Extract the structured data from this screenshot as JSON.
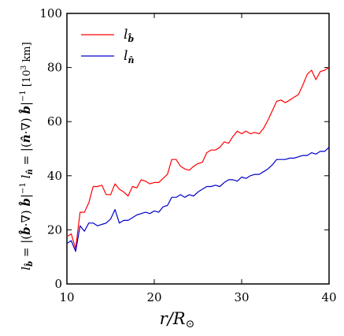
{
  "chart_data": {
    "type": "line",
    "xlabel": "r/R⊙",
    "ylabel_left": "l_b = |(b·∇) b|⁻¹",
    "ylabel_right": "l_n = |(n·∇) b|⁻¹",
    "ylabel_units": "[10³ km]",
    "xlim": [
      10,
      40
    ],
    "ylim": [
      0,
      100
    ],
    "xticks": [
      10,
      20,
      30,
      40
    ],
    "yticks": [
      0,
      20,
      40,
      60,
      80,
      100
    ],
    "grid": false,
    "legend_position": "top-left",
    "series": [
      {
        "name": "l_b",
        "color": "#ff0000",
        "x": [
          10,
          10.5,
          11,
          11.5,
          12,
          12.5,
          13,
          13.5,
          14,
          14.5,
          15,
          15.5,
          16,
          16.5,
          17,
          17.5,
          18,
          18.5,
          19,
          19.5,
          20,
          20.5,
          21,
          21.5,
          22,
          22.5,
          23,
          23.5,
          24,
          24.5,
          25,
          25.5,
          26,
          26.5,
          27,
          27.5,
          28,
          28.5,
          29,
          29.5,
          30,
          30.5,
          31,
          31.5,
          32,
          32.5,
          33,
          33.5,
          34,
          34.5,
          35,
          35.5,
          36,
          36.5,
          37,
          37.5,
          38,
          38.5,
          39,
          39.5,
          40
        ],
        "y": [
          17.5,
          18.5,
          13,
          26.5,
          26.5,
          30,
          36,
          36,
          36.5,
          33,
          33,
          37,
          35,
          34,
          32.5,
          36,
          35.5,
          38.5,
          38,
          37,
          37.5,
          37.5,
          39,
          40.5,
          46,
          46,
          43.5,
          42.5,
          42,
          43.5,
          44.5,
          45,
          48.5,
          49.5,
          49.5,
          50.5,
          52.5,
          52,
          54.5,
          56.5,
          55.5,
          56.5,
          55.5,
          56,
          55.5,
          57.5,
          60.5,
          64,
          67.5,
          68,
          67,
          68,
          69,
          70,
          73.5,
          77.5,
          79,
          75.5,
          78.5,
          79,
          80
        ]
      },
      {
        "name": "l_n",
        "color": "#0000cc",
        "x": [
          10,
          10.5,
          11,
          11.5,
          12,
          12.5,
          13,
          13.5,
          14,
          14.5,
          15,
          15.5,
          16,
          16.5,
          17,
          17.5,
          18,
          18.5,
          19,
          19.5,
          20,
          20.5,
          21,
          21.5,
          22,
          22.5,
          23,
          23.5,
          24,
          24.5,
          25,
          25.5,
          26,
          26.5,
          27,
          27.5,
          28,
          28.5,
          29,
          29.5,
          30,
          30.5,
          31,
          31.5,
          32,
          32.5,
          33,
          33.5,
          34,
          34.5,
          35,
          35.5,
          36,
          36.5,
          37,
          37.5,
          38,
          38.5,
          39,
          39.5,
          40
        ],
        "y": [
          15,
          16,
          12,
          21.5,
          19.5,
          22.5,
          22.5,
          21.5,
          22,
          22.5,
          24,
          27.5,
          22.5,
          23.5,
          23.5,
          24.5,
          25.5,
          26,
          26.5,
          26,
          27,
          26.5,
          28.5,
          29,
          32,
          32,
          33,
          32,
          33,
          32.5,
          34,
          35,
          36,
          36,
          36.5,
          36,
          37.5,
          38.5,
          38.5,
          38,
          39.5,
          39,
          40,
          40.5,
          40.5,
          41.5,
          42.5,
          44,
          46,
          46,
          46,
          46.5,
          46.5,
          47,
          47.5,
          47.5,
          48.5,
          48,
          49,
          49,
          50.5
        ]
      }
    ]
  }
}
